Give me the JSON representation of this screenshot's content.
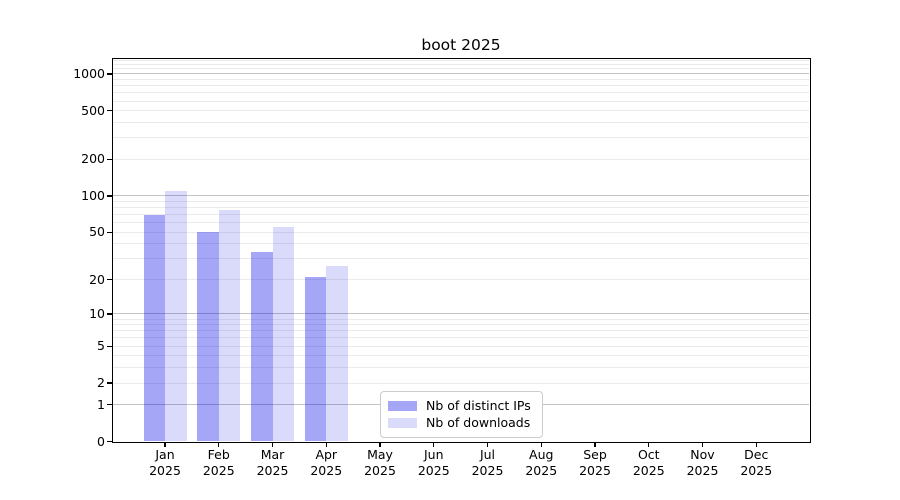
{
  "chart_data": {
    "type": "bar",
    "title": "boot 2025",
    "x_categories": [
      "Jan",
      "Feb",
      "Mar",
      "Apr",
      "May",
      "Jun",
      "Jul",
      "Aug",
      "Sep",
      "Oct",
      "Nov",
      "Dec"
    ],
    "x_year_label": "2025",
    "series": [
      {
        "name": "Nb of distinct IPs",
        "key": "distinct-ips",
        "color": "rgba(0,0,230,0.35)",
        "values": [
          70,
          50,
          34,
          21,
          0,
          0,
          0,
          0,
          0,
          0,
          0,
          0
        ]
      },
      {
        "name": "Nb of downloads",
        "key": "downloads",
        "color": "rgba(0,0,230,0.145)",
        "values": [
          110,
          77,
          55,
          26,
          0,
          0,
          0,
          0,
          0,
          0,
          0,
          0
        ]
      }
    ],
    "xlabel": "",
    "ylabel": "",
    "yscale": "log10(1+v)",
    "ylim": [
      0,
      1320
    ],
    "y_ticks": [
      1000,
      500,
      200,
      100,
      50,
      20,
      10,
      5,
      2,
      1,
      0
    ],
    "grid": {
      "on": true,
      "major_ticks": [
        1,
        10,
        100,
        1000
      ],
      "minor_ticks": [
        2,
        3,
        4,
        5,
        6,
        7,
        8,
        9,
        20,
        30,
        40,
        50,
        60,
        70,
        80,
        90,
        200,
        300,
        400,
        500,
        600,
        700,
        800,
        900,
        1100,
        1200,
        1300
      ],
      "major_color": "#c3c3c3",
      "minor_color": "#ebebeb"
    },
    "legend": {
      "position": "lower center"
    },
    "colors": {
      "spine": "#000000",
      "text": "#000000",
      "background": "#ffffff"
    }
  }
}
